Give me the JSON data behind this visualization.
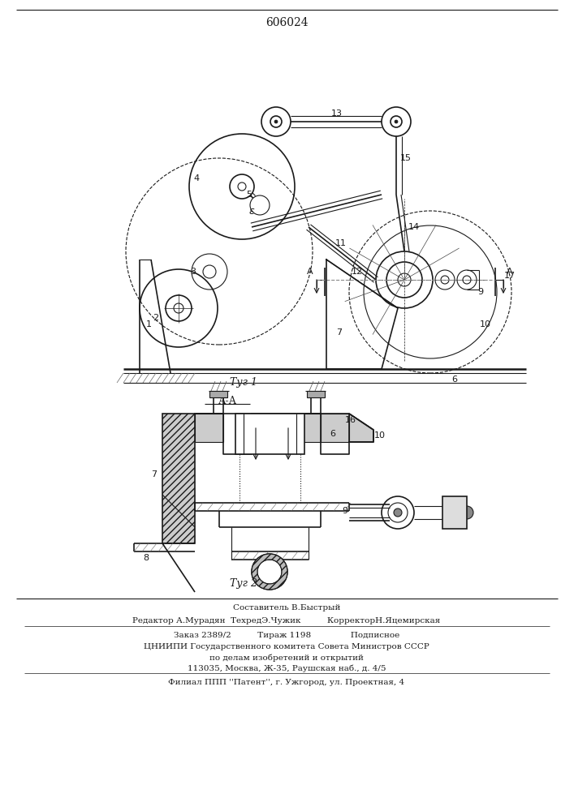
{
  "patent_number": "606024",
  "fig1_label": "Τуг 1",
  "fig2_label": "Τуг 2",
  "section_label": "А-А",
  "footer_line1": "Составитель В.Быстрый",
  "footer_line2": "Редактор А.Мурадян  ТехредЭ.Чужик          КорректорН.Яцемирская",
  "footer_line3": "Заказ 2389/2          Тираж 1198               Подписное",
  "footer_line4": "ЦНИИПИ Государственного комитета Совета Министров СССР",
  "footer_line5": "по делам изобретений и открытий",
  "footer_line6": "113035, Москва, Ж-35, Раушская наб., д. 4/5",
  "footer_line7": "Филиал ППП ''Патент'', г. Ужгород, ул. Проектная, 4",
  "line_color": "#1a1a1a"
}
